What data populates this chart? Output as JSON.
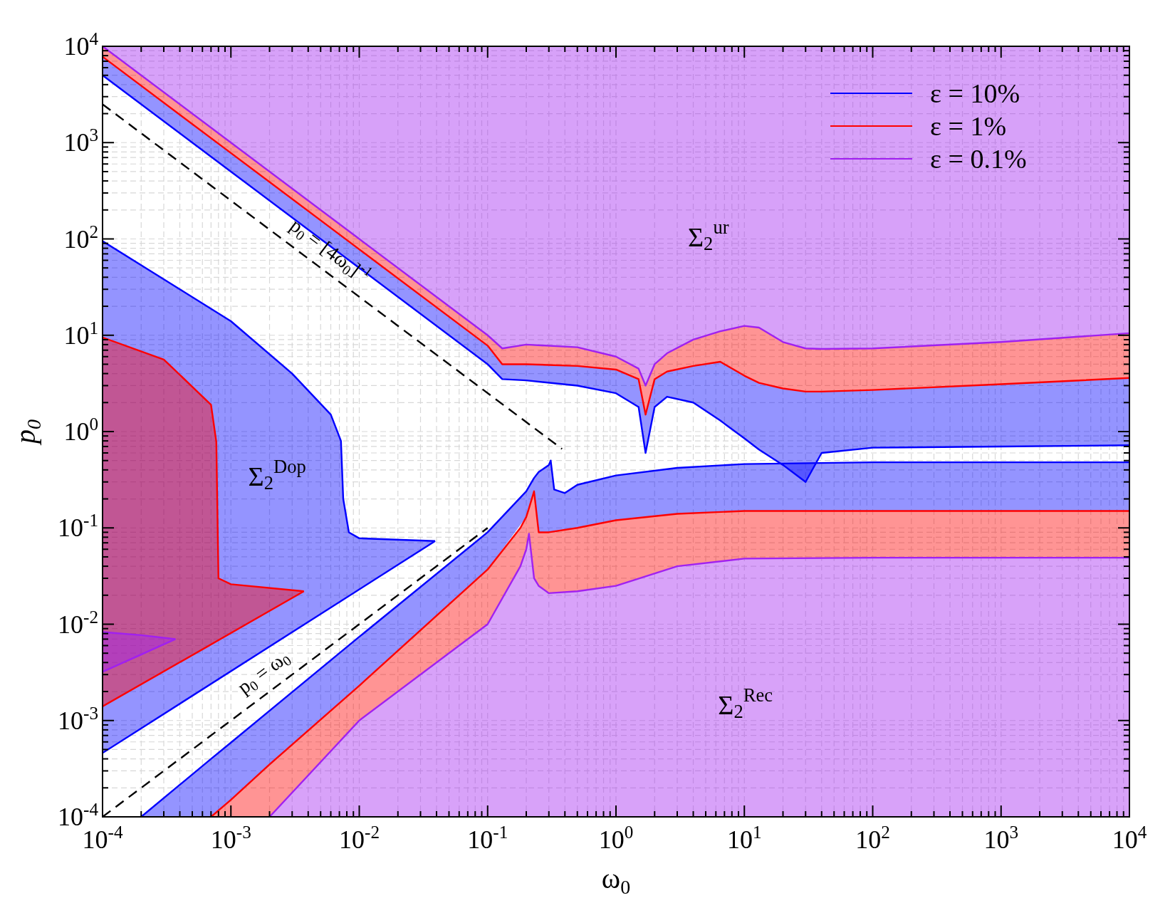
{
  "chart_data": {
    "type": "line",
    "xlabel": "ω$_{0}$",
    "ylabel": "p$_{0}$",
    "log": "xy",
    "grid": true,
    "legend": "top right",
    "line_style": "solid",
    "marker": "none",
    "xlim": [
      0.0001,
      10000
    ],
    "ylim": [
      0.0001,
      10000
    ],
    "xticks": [
      {
        "value": 0.0001,
        "label": "10$^{-4}$"
      },
      {
        "value": 0.001,
        "label": "10$^{-3}$"
      },
      {
        "value": 0.01,
        "label": "10$^{-2}$"
      },
      {
        "value": 0.1,
        "label": "10$^{-1}$"
      },
      {
        "value": 1,
        "label": "10$^{0}$"
      },
      {
        "value": 10,
        "label": "10$^{1}$"
      },
      {
        "value": 100,
        "label": "10$^{2}$"
      },
      {
        "value": 1000,
        "label": "10$^{3}$"
      },
      {
        "value": 10000,
        "label": "10$^{4}$"
      }
    ],
    "yticks": [
      {
        "value": 0.0001,
        "label": "10$^{-4}$"
      },
      {
        "value": 0.001,
        "label": "10$^{-3}$"
      },
      {
        "value": 0.01,
        "label": "10$^{-2}$"
      },
      {
        "value": 0.1,
        "label": "10$^{-1}$"
      },
      {
        "value": 1,
        "label": "10$^{0}$"
      },
      {
        "value": 10,
        "label": "10$^{1}$"
      },
      {
        "value": 100,
        "label": "10$^{2}$"
      },
      {
        "value": 1000,
        "label": "10$^{3}$"
      },
      {
        "value": 10000,
        "label": "10$^{4}$"
      }
    ],
    "series": [
      {
        "name": "ε = 10%",
        "color": "#0000ff",
        "x": [
          0.0001,
          0.001,
          0.01,
          0.1,
          0.13,
          0.2,
          0.5,
          1,
          1.5,
          1.7,
          2,
          2.5,
          4,
          6.5,
          10,
          13,
          20,
          30,
          40,
          100,
          1000,
          10000
        ],
        "values": [
          5000,
          500,
          50,
          5,
          3.5,
          3.4,
          3,
          2.5,
          1.8,
          0.6,
          1.8,
          2.3,
          2,
          1.3,
          0.85,
          0.65,
          0.45,
          0.3,
          0.6,
          0.68,
          0.7,
          0.72
        ],
        "lower": [
          5000,
          500,
          50,
          5,
          3.5,
          3.4,
          3,
          2.5,
          1.8,
          0.6,
          1.8,
          2.3,
          2,
          1.3,
          0.85,
          0.65,
          0.45,
          0.3,
          0.6,
          0.68,
          0.7,
          0.72
        ],
        "upper": [
          7800,
          780,
          78,
          7.8,
          5,
          5,
          4.8,
          4.4,
          3.5,
          1.5,
          3.5,
          4.2,
          4.8,
          5.3,
          3.8,
          3.2,
          2.8,
          2.6,
          2.6,
          2.7,
          3.1,
          3.6
        ]
      },
      {
        "name": "ε = 1%",
        "color": "#ff0000",
        "x": [
          0.0001,
          0.001,
          0.01,
          0.1,
          0.13,
          0.2,
          0.5,
          1,
          1.5,
          1.7,
          2,
          2.5,
          4,
          6.5,
          10,
          13,
          20,
          30,
          40,
          100,
          1000,
          10000
        ],
        "values": [
          7800,
          780,
          78,
          7.8,
          5,
          5,
          4.8,
          4.4,
          3.5,
          1.5,
          3.5,
          4.2,
          4.8,
          5.3,
          3.8,
          3.2,
          2.8,
          2.6,
          2.6,
          2.7,
          3.1,
          3.6
        ],
        "lower": [
          7800,
          780,
          78,
          7.8,
          5,
          5,
          4.8,
          4.4,
          3.5,
          1.5,
          3.5,
          4.2,
          4.8,
          5.3,
          3.8,
          3.2,
          2.8,
          2.6,
          2.6,
          2.7,
          3.1,
          3.6
        ],
        "upper": [
          10000,
          1000,
          100,
          10,
          7.3,
          8,
          7.5,
          6,
          4.5,
          3,
          5,
          6.5,
          9,
          11,
          12.5,
          12,
          8.5,
          7.3,
          7.2,
          7.3,
          8.5,
          10.5
        ]
      },
      {
        "name": "ε = 0.1%",
        "color": "#a020f0",
        "x": [
          0.0001,
          0.001,
          0.01,
          0.1,
          0.13,
          0.2,
          0.5,
          1,
          1.5,
          1.7,
          2,
          2.5,
          4,
          6.5,
          10,
          13,
          20,
          30,
          40,
          100,
          1000,
          10000
        ],
        "values": [
          10000,
          1000,
          100,
          10,
          7.3,
          8,
          7.5,
          6,
          4.5,
          3,
          5,
          6.5,
          9,
          11,
          12.5,
          12,
          8.5,
          7.3,
          7.2,
          7.3,
          8.5,
          10.5
        ],
        "lower": [
          10000,
          1000,
          100,
          10,
          7.3,
          8,
          7.5,
          6,
          4.5,
          3,
          5,
          6.5,
          9,
          11,
          12.5,
          12,
          8.5,
          7.3,
          7.2,
          7.3,
          8.5,
          10.5
        ],
        "upper": [
          10000,
          10000,
          10000,
          10000,
          10000,
          10000,
          10000,
          10000,
          10000,
          10000,
          10000,
          10000,
          10000,
          10000,
          10000,
          10000,
          10000,
          10000,
          10000,
          10000,
          10000,
          10000
        ]
      },
      {
        "color": "#0000ff",
        "x": [
          0.0002,
          0.0007,
          0.001,
          0.01,
          0.1,
          0.2,
          0.23,
          0.25,
          0.3,
          0.31,
          0.33,
          0.4,
          0.5,
          1,
          3,
          10,
          100,
          10000
        ],
        "values": [
          0.0001,
          0.0004,
          0.00059,
          0.0074,
          0.09,
          0.24,
          0.33,
          0.38,
          0.45,
          0.5,
          0.25,
          0.23,
          0.28,
          0.35,
          0.42,
          0.46,
          0.48,
          0.48
        ],
        "lower": [
          0.0001,
          0.0001,
          0.00015,
          0.0023,
          0.037,
          0.13,
          0.24,
          0.09,
          0.09,
          0.09,
          0.09,
          0.095,
          0.1,
          0.12,
          0.14,
          0.15,
          0.15,
          0.15
        ],
        "upper": [
          0.0001,
          0.0004,
          0.00059,
          0.0074,
          0.09,
          0.24,
          0.33,
          0.38,
          0.45,
          0.5,
          0.25,
          0.23,
          0.28,
          0.35,
          0.42,
          0.46,
          0.48,
          0.48
        ]
      },
      {
        "color": "#fe0000",
        "x": [
          0.0007,
          0.001,
          0.002,
          0.01,
          0.1,
          0.18,
          0.2,
          0.21,
          0.23,
          0.25,
          0.3,
          0.5,
          1,
          3,
          10,
          100,
          10000
        ],
        "values": [
          0.0001,
          0.00015,
          0.00035,
          0.0023,
          0.037,
          0.1,
          0.13,
          0.16,
          0.24,
          0.09,
          0.09,
          0.1,
          0.12,
          0.14,
          0.15,
          0.15,
          0.15
        ],
        "lower": [
          0.0001,
          0.0001,
          0.0001,
          0.001,
          0.01,
          0.04,
          0.06,
          0.087,
          0.03,
          0.025,
          0.021,
          0.022,
          0.025,
          0.04,
          0.048,
          0.049,
          0.049
        ],
        "upper": [
          0.0001,
          0.00015,
          0.00035,
          0.0023,
          0.037,
          0.1,
          0.13,
          0.16,
          0.24,
          0.09,
          0.09,
          0.1,
          0.12,
          0.14,
          0.15,
          0.15,
          0.15
        ]
      },
      {
        "color": "#a121f0",
        "x": [
          0.002,
          0.01,
          0.1,
          0.18,
          0.2,
          0.21,
          0.23,
          0.25,
          0.3,
          0.5,
          1,
          3,
          10,
          100,
          10000
        ],
        "values": [
          0.0001,
          0.001,
          0.01,
          0.04,
          0.06,
          0.087,
          0.03,
          0.025,
          0.021,
          0.022,
          0.025,
          0.04,
          0.048,
          0.049,
          0.049
        ],
        "lower": [
          0.0001,
          0.0001,
          0.0001,
          0.0001,
          0.0001,
          0.0001,
          0.0001,
          0.0001,
          0.0001,
          0.0001,
          0.0001,
          0.0001,
          0.0001,
          0.0001,
          0.0001
        ],
        "upper": [
          0.0001,
          0.001,
          0.01,
          0.04,
          0.06,
          0.087,
          0.03,
          0.025,
          0.021,
          0.022,
          0.025,
          0.04,
          0.048,
          0.049,
          0.049
        ]
      },
      {
        "color": "#0000ff",
        "x": [
          0.0001,
          0.001,
          0.003,
          0.006,
          0.0072,
          0.0075,
          0.0083,
          0.01,
          0.039
        ],
        "values": [
          95,
          14,
          4,
          1.5,
          0.8,
          0.2,
          0.09,
          0.078,
          0.073
        ],
        "lower": [
          0.00046,
          0.0032,
          0.0083,
          0.015,
          0.017,
          0.018,
          0.02,
          0.023,
          0.073
        ],
        "upper": [
          95,
          14,
          4,
          1.5,
          0.8,
          0.2,
          0.09,
          0.078,
          0.073
        ]
      },
      {
        "color": "#0000ff",
        "x": [
          0.0001,
          0.039
        ],
        "values": [
          0.00046,
          0.073
        ]
      },
      {
        "color": "#ff0000",
        "x": [
          0.0001,
          0.0003,
          0.0007,
          0.00077,
          0.0008,
          0.001,
          0.0037
        ],
        "values": [
          9.5,
          5.6,
          1.9,
          0.78,
          0.03,
          0.026,
          0.022
        ],
        "lower": [
          0.0014,
          0.0032,
          0.006,
          0.0065,
          0.0067,
          0.0079,
          0.022
        ],
        "upper": [
          9.5,
          5.6,
          1.9,
          0.78,
          0.03,
          0.026,
          0.022
        ]
      },
      {
        "color": "#ff0000",
        "x": [
          0.0001,
          0.0037
        ],
        "values": [
          0.0014,
          0.022
        ]
      },
      {
        "color": "#a020f0",
        "x": [
          0.0001,
          0.0002,
          0.00037
        ],
        "values": [
          0.0083,
          0.0077,
          0.007
        ],
        "lower": [
          0.0032,
          0.0047,
          0.007
        ],
        "upper": [
          0.0083,
          0.0077,
          0.007
        ]
      },
      {
        "color": "#a020f0",
        "x": [
          0.0001,
          0.00037
        ],
        "values": [
          0.0032,
          0.007
        ]
      },
      {
        "color": "#000000",
        "line_style": "dashed",
        "x": [
          0.0001,
          0.38
        ],
        "values": [
          2500,
          0.66
        ]
      },
      {
        "color": "#000000",
        "line_style": "dashed",
        "x": [
          0.0001,
          0.1
        ],
        "values": [
          0.0001,
          0.1
        ]
      }
    ],
    "annotations": [
      {
        "text": "p$_{0}$ = [4ω$_{0}$]$^{-1}$",
        "x": 0.0048,
        "y": 52
      },
      {
        "text": "p$_{0}$ = ω$_{0}$",
        "x": 0.0022,
        "y": 0.0022
      },
      "Σ$_{2}$$^{ur}$",
      "Σ$_{2}$$^{Dop}$",
      "Σ$_{2}$$^{Rec}$"
    ]
  }
}
